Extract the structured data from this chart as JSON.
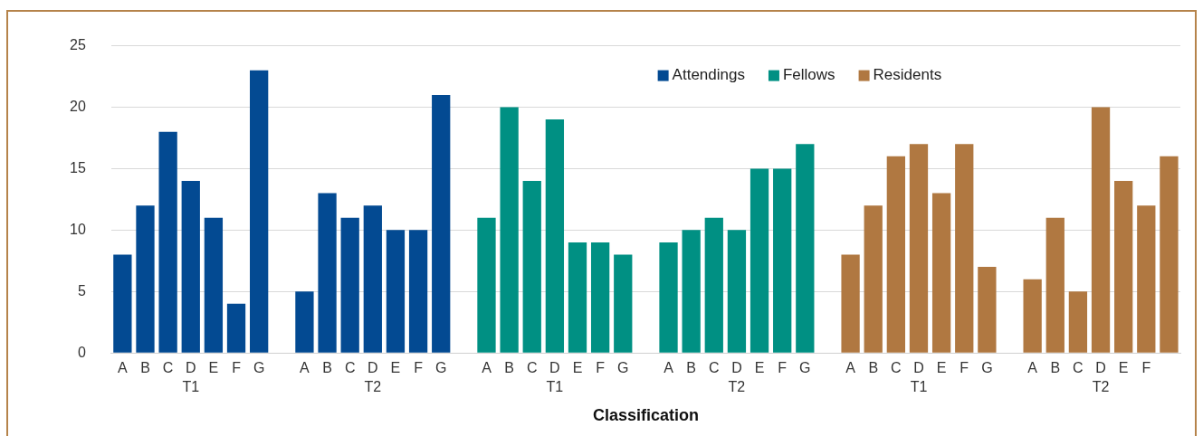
{
  "chart_data": {
    "type": "bar",
    "xlabel": "Classification",
    "categories": [
      "A",
      "B",
      "C",
      "D",
      "E",
      "F",
      "G",
      null,
      "A",
      "B",
      "C",
      "D",
      "E",
      "F",
      "G",
      null,
      "A",
      "B",
      "C",
      "D",
      "E",
      "F",
      "G",
      null,
      "A",
      "B",
      "C",
      "D",
      "E",
      "F",
      "G",
      null,
      "A",
      "B",
      "C",
      "D",
      "E",
      "F",
      "G",
      null,
      "A",
      "B",
      "C",
      "D",
      "E",
      "F",
      null
    ],
    "series": [
      {
        "name": "Attendings",
        "color": "#034a92",
        "values": [
          8,
          12,
          18,
          14,
          11,
          4,
          23,
          null,
          5,
          13,
          11,
          12,
          10,
          10,
          21,
          null,
          null,
          null,
          null,
          null,
          null,
          null,
          null,
          null,
          null,
          null,
          null,
          null,
          null,
          null,
          null,
          null,
          null,
          null,
          null,
          null,
          null,
          null,
          null,
          null,
          null,
          null,
          null,
          null,
          null,
          null,
          null
        ]
      },
      {
        "name": "Fellows",
        "color": "#009083",
        "values": [
          null,
          null,
          null,
          null,
          null,
          null,
          null,
          null,
          null,
          null,
          null,
          null,
          null,
          null,
          null,
          null,
          11,
          20,
          14,
          19,
          9,
          9,
          8,
          null,
          9,
          10,
          11,
          10,
          15,
          15,
          17,
          null,
          null,
          null,
          null,
          null,
          null,
          null,
          null,
          null,
          null,
          null,
          null,
          null,
          null,
          null,
          null
        ]
      },
      {
        "name": "Residents",
        "color": "#b07841",
        "values": [
          null,
          null,
          null,
          null,
          null,
          null,
          null,
          null,
          null,
          null,
          null,
          null,
          null,
          null,
          null,
          null,
          null,
          null,
          null,
          null,
          null,
          null,
          null,
          null,
          null,
          null,
          null,
          null,
          null,
          null,
          null,
          null,
          8,
          12,
          16,
          17,
          13,
          17,
          7,
          null,
          6,
          11,
          5,
          20,
          14,
          12,
          16
        ]
      }
    ],
    "annotations": [
      "T1",
      "T2",
      "T1",
      "T2",
      "T1",
      "T2"
    ],
    "ylim": [
      0,
      25
    ],
    "yticks": [
      0,
      5,
      10,
      15,
      20,
      25
    ],
    "grid": "y",
    "legend": "top"
  }
}
